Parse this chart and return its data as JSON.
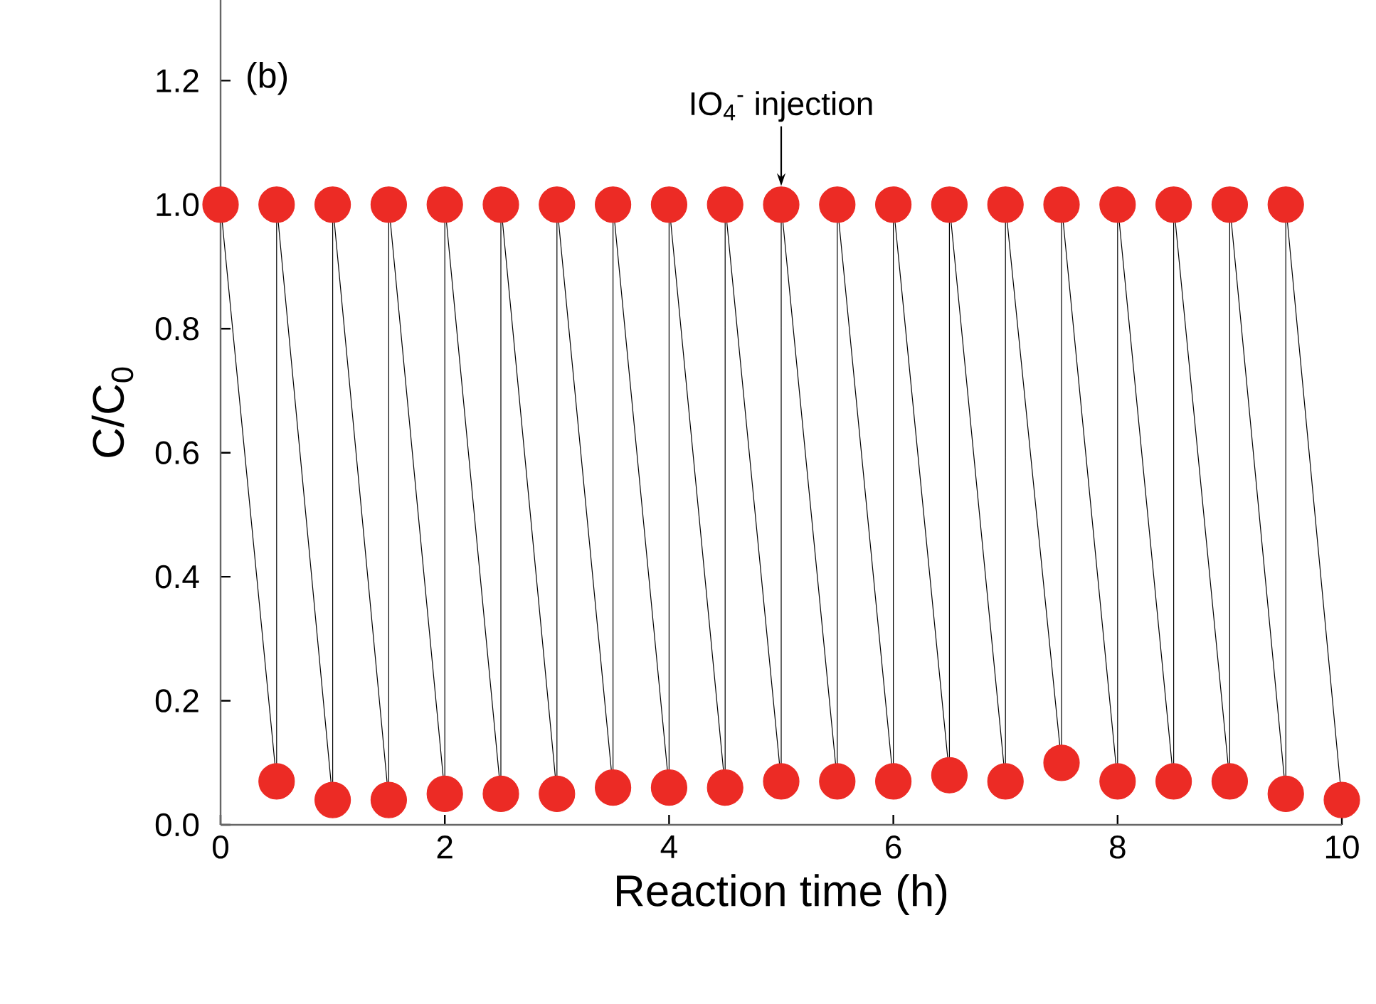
{
  "chart_data": {
    "type": "line",
    "xlabel": "Reaction time (h)",
    "ylabel": "C/C$_{0}$",
    "annotations": [
      "(b)",
      {
        "text": "IO$_{4}$$^{-}$ injection",
        "x": 5,
        "y": 1.03
      }
    ],
    "x": [
      0,
      0.5,
      0.5,
      1,
      1,
      1.5,
      1.5,
      2,
      2,
      2.5,
      2.5,
      3,
      3,
      3.5,
      3.5,
      4,
      4,
      4.5,
      4.5,
      5,
      5,
      5.5,
      5.5,
      6,
      6,
      6.5,
      6.5,
      7,
      7,
      7.5,
      7.5,
      8,
      8,
      8.5,
      8.5,
      9,
      9,
      9.5,
      9.5,
      10
    ],
    "series": [
      {
        "color": "#ec2b25",
        "values": [
          1.0,
          0.07,
          1.0,
          0.04,
          1.0,
          0.04,
          1.0,
          0.05,
          1.0,
          0.05,
          1.0,
          0.05,
          1.0,
          0.06,
          1.0,
          0.06,
          1.0,
          0.06,
          1.0,
          0.07,
          1.0,
          0.07,
          1.0,
          0.07,
          1.0,
          0.08,
          1.0,
          0.07,
          1.0,
          0.1,
          1.0,
          0.07,
          1.0,
          0.07,
          1.0,
          0.07,
          1.0,
          0.05,
          1.0,
          0.04
        ]
      }
    ],
    "xlim": [
      0,
      10
    ],
    "ylim": [
      0,
      1.33
    ],
    "xticks": [
      0,
      2,
      4,
      6,
      8,
      10
    ],
    "yticks": [
      {
        "value": 0,
        "label": "0.0"
      },
      {
        "value": 0.2,
        "label": "0.2"
      },
      {
        "value": 0.4,
        "label": "0.4"
      },
      {
        "value": 0.6,
        "label": "0.6"
      },
      {
        "value": 0.8,
        "label": "0.8"
      },
      {
        "value": 1.0,
        "label": "1.0"
      },
      {
        "value": 1.2,
        "label": "1.2"
      }
    ],
    "marker": "circle",
    "line_style": "solid",
    "grid": false
  }
}
